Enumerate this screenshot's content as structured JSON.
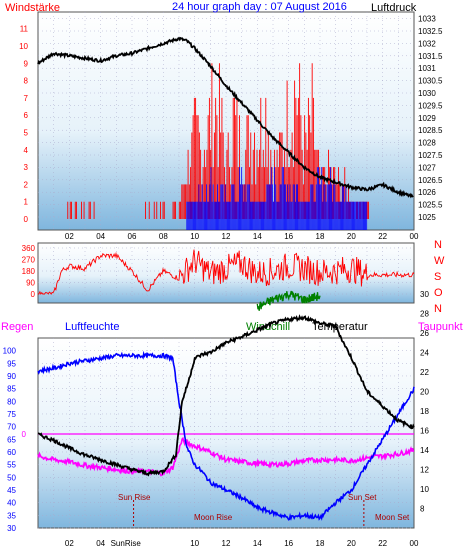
{
  "chart_data": [
    {
      "type": "line",
      "title": "24 hour graph day : 07 August 2016",
      "left_label": "Windstärke",
      "right_label": "Luftdruck",
      "x_ticks": [
        "02",
        "04",
        "06",
        "08",
        "10",
        "12",
        "14",
        "16",
        "18",
        "20",
        "22",
        "00"
      ],
      "left_ticks": [
        0,
        1,
        2,
        3,
        4,
        5,
        6,
        7,
        8,
        9,
        10,
        11
      ],
      "right_ticks": [
        "1025",
        "1025.5",
        "1026",
        "1026.5",
        "1027",
        "1027.5",
        "1028",
        "1028.5",
        "1029",
        "1029.5",
        "1030",
        "1030.5",
        "1031",
        "1031.5",
        "1032",
        "1032.5",
        "1033"
      ],
      "grid": true,
      "series": [
        {
          "name": "Luftdruck",
          "color": "#000000",
          "x": [
            0,
            1,
            2,
            3,
            4,
            5,
            6,
            7,
            8,
            9,
            9.5,
            10,
            11,
            12,
            13,
            14,
            15,
            16,
            17,
            18,
            19,
            20,
            21,
            22,
            23,
            24
          ],
          "y": [
            1031.2,
            1031.6,
            1031.5,
            1031.4,
            1031.3,
            1031.5,
            1031.6,
            1031.8,
            1032.0,
            1032.2,
            1032.1,
            1031.8,
            1031.1,
            1030.3,
            1029.6,
            1028.9,
            1028.2,
            1027.6,
            1027.0,
            1026.6,
            1026.4,
            1026.2,
            1026.1,
            1026.3,
            1026.0,
            1025.8
          ]
        },
        {
          "name": "Windstärke (Böen)",
          "color": "#ff0000",
          "x": [
            0,
            1.5,
            2,
            3.5,
            4,
            6.5,
            7,
            8.5,
            9,
            9.5,
            10,
            10.5,
            11,
            11.5,
            12,
            12.5,
            13,
            13.5,
            14,
            14.5,
            15,
            15.5,
            16,
            16.5,
            17,
            17.5,
            18,
            18.5,
            19,
            19.5,
            20,
            20.5,
            21,
            21.5,
            22,
            23,
            24
          ],
          "y": [
            0,
            0,
            1,
            1,
            0,
            0,
            1,
            1,
            1,
            3,
            5,
            4,
            6,
            7,
            3,
            6,
            4,
            5,
            5,
            7,
            3,
            4,
            6,
            8,
            4,
            6,
            2,
            3,
            2,
            2,
            1,
            1,
            1,
            0,
            0,
            0,
            0
          ]
        },
        {
          "name": "Windstärke (Mittel)",
          "color": "#0000ff",
          "x": [
            9.5,
            10,
            11,
            12,
            13,
            14,
            15,
            16,
            17,
            18,
            19,
            20,
            21
          ],
          "y": [
            1,
            1,
            2,
            1,
            2,
            1,
            2,
            2,
            1,
            2,
            2,
            1,
            1
          ]
        }
      ]
    },
    {
      "type": "line",
      "right_labels": [
        "N",
        "W",
        "S",
        "O",
        "N"
      ],
      "left_ticks": [
        0,
        90,
        180,
        270,
        360
      ],
      "series": [
        {
          "name": "Windrichtung",
          "color": "#ff0000",
          "x": [
            0,
            1,
            1.5,
            2,
            3,
            4,
            5,
            6,
            7,
            8,
            9,
            10,
            11,
            12,
            13,
            14,
            15,
            16,
            17,
            18,
            19,
            20,
            21,
            22,
            23,
            24
          ],
          "y": [
            0,
            0,
            180,
            220,
            200,
            300,
            300,
            180,
            30,
            180,
            120,
            260,
            160,
            200,
            240,
            160,
            180,
            220,
            200,
            170,
            180,
            200,
            150,
            150,
            150,
            150
          ]
        }
      ]
    },
    {
      "type": "line",
      "labels": {
        "regen": "Regen",
        "luftfeuchte": "Luftfeuchte",
        "windchill": "Windchill",
        "temperatur": "Temperatur",
        "taupunkt": "Taupunkt"
      },
      "zero_label": "0",
      "left_ticks": [
        30,
        35,
        40,
        45,
        50,
        55,
        60,
        65,
        70,
        75,
        80,
        85,
        90,
        95,
        100
      ],
      "right_ticks": [
        8,
        10,
        12,
        14,
        16,
        18,
        20,
        22,
        24,
        26,
        28,
        30
      ],
      "annotations": {
        "sun_rise": "Sun Rise",
        "sun_set": "Sun Set",
        "moon_rise": "Moon Rise",
        "moon_set": "Moon Set"
      },
      "bottom_labels": [
        "02",
        "04",
        "SunRise",
        "10",
        "12",
        "14",
        "16",
        "18",
        "20",
        "22",
        "00"
      ],
      "series": [
        {
          "name": "Luftfeuchte",
          "color": "#0000ff",
          "x": [
            0,
            1,
            2,
            3,
            4,
            5,
            6,
            7,
            8,
            8.6,
            9,
            9.5,
            10,
            10.5,
            11,
            12,
            13,
            14,
            15,
            16,
            17,
            18,
            19,
            20,
            21,
            22,
            23,
            24
          ],
          "y": [
            92,
            93,
            95,
            96,
            97,
            98,
            98,
            98,
            98,
            97,
            80,
            62,
            55,
            52,
            48,
            45,
            42,
            38,
            36,
            34,
            35,
            34,
            40,
            45,
            55,
            65,
            75,
            85
          ]
        },
        {
          "name": "Temperatur",
          "color": "#000000",
          "x": [
            0,
            1,
            2,
            3,
            4,
            5,
            6,
            7,
            8,
            8.8,
            9.2,
            9.6,
            10,
            10.5,
            11,
            12,
            13,
            14,
            15,
            16,
            17,
            18,
            19,
            19.5,
            20,
            21,
            22,
            23,
            24
          ],
          "y": [
            15.6,
            15.0,
            14.2,
            13.5,
            13.0,
            12.5,
            12.0,
            11.6,
            11.8,
            13.5,
            19.0,
            21.0,
            23.4,
            23.8,
            24.0,
            25.0,
            25.6,
            26.3,
            27.0,
            27.4,
            27.6,
            27.0,
            26.7,
            25.0,
            23.5,
            20.0,
            18.5,
            17.0,
            16.3
          ]
        },
        {
          "name": "Windchill",
          "color": "#008000",
          "x": [
            14,
            15,
            16,
            17,
            18
          ],
          "y": [
            28.6,
            29.4,
            30.0,
            29.4,
            29.8
          ]
        },
        {
          "name": "Taupunkt",
          "color": "#ff00ff",
          "x": [
            0,
            1,
            2,
            3,
            4,
            5,
            6,
            7,
            8,
            8.6,
            9.2,
            10,
            11,
            12,
            13,
            14,
            15,
            16,
            17,
            18,
            19,
            20,
            21,
            22,
            23,
            24
          ],
          "y": [
            13.4,
            13.0,
            12.8,
            12.4,
            12.2,
            12.0,
            11.8,
            11.8,
            11.6,
            12.2,
            15.0,
            14.4,
            13.8,
            13.0,
            12.8,
            12.6,
            12.5,
            12.6,
            12.9,
            13.0,
            13.0,
            12.9,
            13.2,
            13.4,
            13.6,
            14.0
          ]
        }
      ]
    }
  ]
}
